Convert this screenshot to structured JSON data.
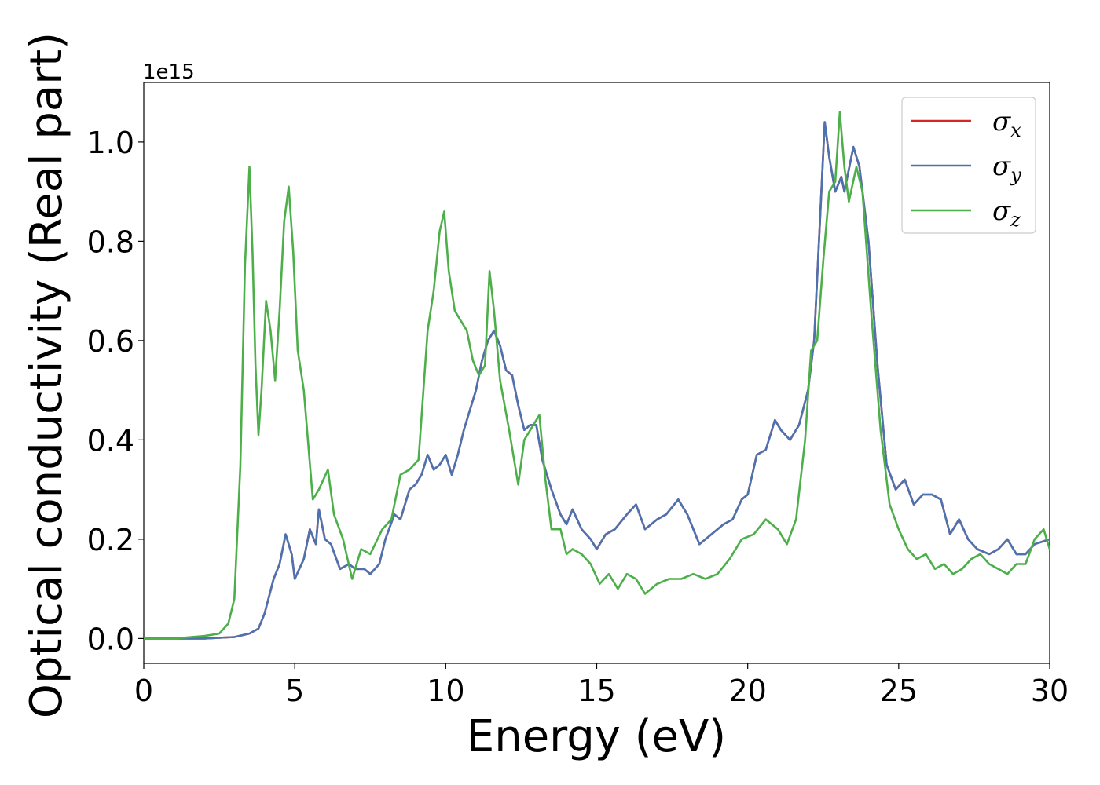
{
  "chart_data": {
    "type": "line",
    "xlabel": "Energy (eV)",
    "ylabel": "Optical conductivity (Real part)",
    "y_offset_text": "1e15",
    "xlim": [
      0,
      30
    ],
    "ylim": [
      -0.05,
      1.12
    ],
    "x_ticks": [
      0,
      5,
      10,
      15,
      20,
      25,
      30
    ],
    "x_tick_labels": [
      "0",
      "5",
      "10",
      "15",
      "20",
      "25",
      "30"
    ],
    "y_ticks": [
      0.0,
      0.2,
      0.4,
      0.6,
      0.8,
      1.0
    ],
    "y_tick_labels": [
      "0.0",
      "0.2",
      "0.4",
      "0.6",
      "0.8",
      "1.0"
    ],
    "grid": false,
    "legend_position": "top-right",
    "series": [
      {
        "name": "σx",
        "symbol": "σ",
        "subscript": "x",
        "color": "#d62728",
        "x": [
          0,
          1,
          2,
          3,
          3.5,
          3.8,
          4.0,
          4.3,
          4.5,
          4.7,
          4.9,
          5.0,
          5.3,
          5.5,
          5.7,
          5.8,
          6.0,
          6.2,
          6.5,
          6.8,
          7.0,
          7.3,
          7.5,
          7.8,
          8.0,
          8.3,
          8.5,
          8.8,
          9.0,
          9.2,
          9.4,
          9.6,
          9.8,
          10.0,
          10.2,
          10.4,
          10.6,
          10.8,
          11.0,
          11.2,
          11.4,
          11.6,
          11.8,
          12.0,
          12.2,
          12.4,
          12.6,
          12.8,
          13.0,
          13.2,
          13.5,
          13.8,
          14.0,
          14.2,
          14.5,
          14.8,
          15.0,
          15.3,
          15.6,
          16.0,
          16.3,
          16.6,
          17.0,
          17.3,
          17.7,
          18.0,
          18.4,
          18.8,
          19.2,
          19.5,
          19.8,
          20.0,
          20.3,
          20.6,
          20.9,
          21.1,
          21.4,
          21.7,
          22.0,
          22.2,
          22.4,
          22.55,
          22.7,
          22.9,
          23.1,
          23.2,
          23.4,
          23.5,
          23.7,
          24.0,
          24.3,
          24.6,
          24.9,
          25.2,
          25.5,
          25.8,
          26.1,
          26.4,
          26.7,
          27.0,
          27.3,
          27.6,
          28.0,
          28.3,
          28.6,
          28.9,
          29.2,
          29.5,
          30.0
        ],
        "y": [
          0.0,
          0.0,
          0.0,
          0.003,
          0.01,
          0.02,
          0.05,
          0.12,
          0.15,
          0.21,
          0.17,
          0.12,
          0.16,
          0.22,
          0.19,
          0.26,
          0.2,
          0.19,
          0.14,
          0.15,
          0.14,
          0.14,
          0.13,
          0.15,
          0.2,
          0.25,
          0.24,
          0.3,
          0.31,
          0.33,
          0.37,
          0.34,
          0.35,
          0.37,
          0.33,
          0.37,
          0.42,
          0.46,
          0.5,
          0.56,
          0.6,
          0.62,
          0.59,
          0.54,
          0.53,
          0.47,
          0.42,
          0.43,
          0.43,
          0.36,
          0.3,
          0.25,
          0.23,
          0.26,
          0.22,
          0.2,
          0.18,
          0.21,
          0.22,
          0.25,
          0.27,
          0.22,
          0.24,
          0.25,
          0.28,
          0.25,
          0.19,
          0.21,
          0.23,
          0.24,
          0.28,
          0.29,
          0.37,
          0.38,
          0.44,
          0.42,
          0.4,
          0.43,
          0.5,
          0.6,
          0.85,
          1.04,
          0.97,
          0.9,
          0.93,
          0.9,
          0.96,
          0.99,
          0.95,
          0.8,
          0.55,
          0.35,
          0.3,
          0.32,
          0.27,
          0.29,
          0.29,
          0.28,
          0.21,
          0.24,
          0.2,
          0.18,
          0.17,
          0.18,
          0.2,
          0.17,
          0.17,
          0.19,
          0.2
        ]
      },
      {
        "name": "σy",
        "symbol": "σ",
        "subscript": "y",
        "color": "#4c72b0",
        "x": [
          0,
          1,
          2,
          3,
          3.5,
          3.8,
          4.0,
          4.3,
          4.5,
          4.7,
          4.9,
          5.0,
          5.3,
          5.5,
          5.7,
          5.8,
          6.0,
          6.2,
          6.5,
          6.8,
          7.0,
          7.3,
          7.5,
          7.8,
          8.0,
          8.3,
          8.5,
          8.8,
          9.0,
          9.2,
          9.4,
          9.6,
          9.8,
          10.0,
          10.2,
          10.4,
          10.6,
          10.8,
          11.0,
          11.2,
          11.4,
          11.6,
          11.8,
          12.0,
          12.2,
          12.4,
          12.6,
          12.8,
          13.0,
          13.2,
          13.5,
          13.8,
          14.0,
          14.2,
          14.5,
          14.8,
          15.0,
          15.3,
          15.6,
          16.0,
          16.3,
          16.6,
          17.0,
          17.3,
          17.7,
          18.0,
          18.4,
          18.8,
          19.2,
          19.5,
          19.8,
          20.0,
          20.3,
          20.6,
          20.9,
          21.1,
          21.4,
          21.7,
          22.0,
          22.2,
          22.4,
          22.55,
          22.7,
          22.9,
          23.1,
          23.2,
          23.4,
          23.5,
          23.7,
          24.0,
          24.3,
          24.6,
          24.9,
          25.2,
          25.5,
          25.8,
          26.1,
          26.4,
          26.7,
          27.0,
          27.3,
          27.6,
          28.0,
          28.3,
          28.6,
          28.9,
          29.2,
          29.5,
          30.0
        ],
        "y": [
          0.0,
          0.0,
          0.0,
          0.003,
          0.01,
          0.02,
          0.05,
          0.12,
          0.15,
          0.21,
          0.17,
          0.12,
          0.16,
          0.22,
          0.19,
          0.26,
          0.2,
          0.19,
          0.14,
          0.15,
          0.14,
          0.14,
          0.13,
          0.15,
          0.2,
          0.25,
          0.24,
          0.3,
          0.31,
          0.33,
          0.37,
          0.34,
          0.35,
          0.37,
          0.33,
          0.37,
          0.42,
          0.46,
          0.5,
          0.56,
          0.6,
          0.62,
          0.59,
          0.54,
          0.53,
          0.47,
          0.42,
          0.43,
          0.43,
          0.36,
          0.3,
          0.25,
          0.23,
          0.26,
          0.22,
          0.2,
          0.18,
          0.21,
          0.22,
          0.25,
          0.27,
          0.22,
          0.24,
          0.25,
          0.28,
          0.25,
          0.19,
          0.21,
          0.23,
          0.24,
          0.28,
          0.29,
          0.37,
          0.38,
          0.44,
          0.42,
          0.4,
          0.43,
          0.5,
          0.6,
          0.85,
          1.04,
          0.97,
          0.9,
          0.93,
          0.9,
          0.96,
          0.99,
          0.95,
          0.8,
          0.55,
          0.35,
          0.3,
          0.32,
          0.27,
          0.29,
          0.29,
          0.28,
          0.21,
          0.24,
          0.2,
          0.18,
          0.17,
          0.18,
          0.2,
          0.17,
          0.17,
          0.19,
          0.2
        ]
      },
      {
        "name": "σz",
        "symbol": "σ",
        "subscript": "z",
        "color": "#4daf4a",
        "x": [
          0,
          1,
          2,
          2.5,
          2.8,
          3.0,
          3.2,
          3.35,
          3.5,
          3.6,
          3.7,
          3.8,
          3.9,
          4.05,
          4.2,
          4.35,
          4.5,
          4.65,
          4.8,
          4.95,
          5.1,
          5.3,
          5.6,
          5.8,
          6.1,
          6.3,
          6.6,
          6.9,
          7.2,
          7.5,
          7.9,
          8.2,
          8.5,
          8.8,
          9.1,
          9.4,
          9.6,
          9.8,
          9.95,
          10.1,
          10.3,
          10.5,
          10.7,
          10.9,
          11.1,
          11.3,
          11.45,
          11.6,
          11.8,
          12.1,
          12.4,
          12.6,
          12.9,
          13.1,
          13.3,
          13.5,
          13.8,
          14.0,
          14.2,
          14.5,
          14.8,
          15.1,
          15.4,
          15.7,
          16.0,
          16.3,
          16.6,
          17.0,
          17.4,
          17.8,
          18.2,
          18.6,
          19.0,
          19.4,
          19.8,
          20.2,
          20.6,
          21.0,
          21.3,
          21.6,
          21.9,
          22.1,
          22.3,
          22.5,
          22.7,
          22.9,
          23.05,
          23.2,
          23.35,
          23.6,
          23.8,
          24.1,
          24.4,
          24.7,
          25.0,
          25.3,
          25.6,
          25.9,
          26.2,
          26.5,
          26.8,
          27.1,
          27.4,
          27.7,
          28.0,
          28.3,
          28.6,
          28.9,
          29.2,
          29.5,
          29.8,
          30.0
        ],
        "y": [
          0.0,
          0.0,
          0.005,
          0.01,
          0.03,
          0.08,
          0.35,
          0.75,
          0.95,
          0.78,
          0.55,
          0.41,
          0.5,
          0.68,
          0.62,
          0.52,
          0.66,
          0.84,
          0.91,
          0.78,
          0.58,
          0.5,
          0.28,
          0.3,
          0.34,
          0.25,
          0.2,
          0.12,
          0.18,
          0.17,
          0.22,
          0.24,
          0.33,
          0.34,
          0.36,
          0.62,
          0.7,
          0.82,
          0.86,
          0.74,
          0.66,
          0.64,
          0.62,
          0.56,
          0.53,
          0.55,
          0.74,
          0.66,
          0.52,
          0.42,
          0.31,
          0.4,
          0.43,
          0.45,
          0.32,
          0.22,
          0.22,
          0.17,
          0.18,
          0.17,
          0.15,
          0.11,
          0.13,
          0.1,
          0.13,
          0.12,
          0.09,
          0.11,
          0.12,
          0.12,
          0.13,
          0.12,
          0.13,
          0.16,
          0.2,
          0.21,
          0.24,
          0.22,
          0.19,
          0.24,
          0.4,
          0.58,
          0.6,
          0.76,
          0.9,
          0.92,
          1.06,
          0.95,
          0.88,
          0.95,
          0.9,
          0.65,
          0.42,
          0.27,
          0.22,
          0.18,
          0.16,
          0.17,
          0.14,
          0.15,
          0.13,
          0.14,
          0.16,
          0.17,
          0.15,
          0.14,
          0.13,
          0.15,
          0.15,
          0.2,
          0.22,
          0.18
        ]
      }
    ]
  }
}
